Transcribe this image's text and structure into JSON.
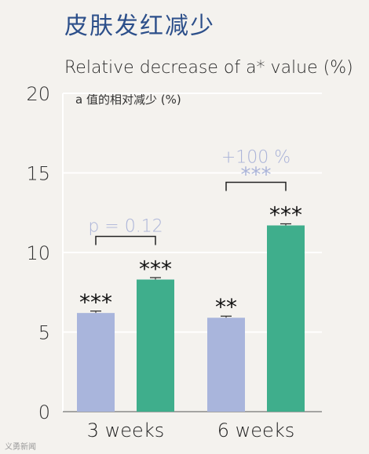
{
  "header": {
    "title_zh": "皮肤发红减少"
  },
  "chart_data": {
    "type": "bar",
    "title": "Relative decrease of a* value (%)",
    "subtitle": "a 值的相对减少 (%)",
    "categories": [
      "3 weeks",
      "6 weeks"
    ],
    "series": [
      {
        "values": [
          6.2,
          5.9
        ],
        "errors": [
          0.12,
          0.1
        ],
        "color": "#a9b5dc",
        "significance": [
          "***",
          "**"
        ]
      },
      {
        "values": [
          8.3,
          11.7
        ],
        "errors": [
          0.12,
          0.1
        ],
        "color": "#3fae8c",
        "significance": [
          "***",
          "***"
        ]
      }
    ],
    "ylim": [
      0,
      20
    ],
    "yticks": [
      "0",
      "5",
      "10",
      "15",
      "20"
    ],
    "grid": true,
    "annotations": [
      {
        "category": "3 weeks",
        "label": "p = 0.12"
      },
      {
        "category": "6 weeks",
        "label": "+100 %",
        "stars": "***"
      }
    ],
    "annotation_color": "#aab3d8"
  },
  "watermark": "义勇新闻"
}
